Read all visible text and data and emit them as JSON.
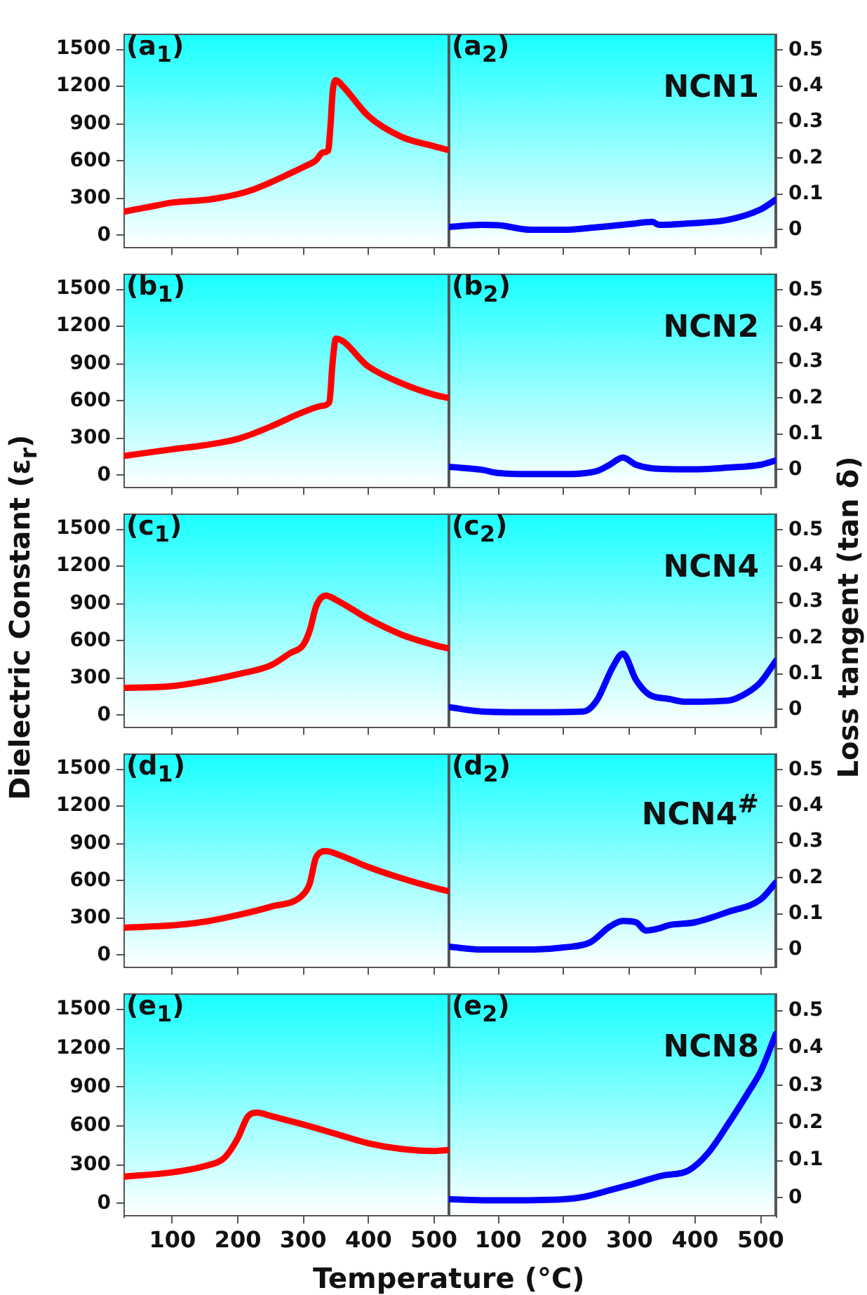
{
  "chart_data": [
    {
      "type": "line",
      "annotations": [
        "(a$_{1}$)"
      ],
      "xlim": [
        25,
        523
      ],
      "xticks": [
        100,
        200,
        300,
        400,
        500
      ],
      "ylim": [
        -100,
        1620
      ],
      "yticks": [
        0,
        300,
        600,
        900,
        1200,
        1500
      ],
      "tick_labels": "y",
      "marker": "none",
      "x": [
        25,
        50,
        75,
        100,
        125,
        150,
        175,
        200,
        225,
        250,
        275,
        300,
        320,
        330,
        338,
        342,
        345,
        350,
        360,
        400,
        450,
        500,
        520
      ],
      "series": [
        {
          "color": "#ff0000",
          "values": [
            190,
            215,
            240,
            265,
            275,
            285,
            305,
            332,
            372,
            426,
            487,
            550,
            607,
            668,
            680,
            900,
            1150,
            1250,
            1205,
            960,
            795,
            718,
            690
          ]
        }
      ]
    },
    {
      "type": "line",
      "annotations": [
        "(a$_{2}$)",
        "NCN1"
      ],
      "xlim": [
        25,
        523
      ],
      "xticks": [
        100,
        200,
        300,
        400,
        500
      ],
      "y2lim": [
        -0.05,
        0.545
      ],
      "y2ticks": [
        0,
        0.1,
        0.2,
        0.3,
        0.4,
        0.5
      ],
      "tick_labels": "y",
      "marker": "none",
      "x": [
        25,
        75,
        100,
        150,
        200,
        250,
        300,
        335,
        345,
        400,
        450,
        500,
        523
      ],
      "series": [
        {
          "color": "#0000ff",
          "axis": "y2",
          "values": [
            0.008,
            0.014,
            0.013,
            0,
            0,
            0.007,
            0.016,
            0.022,
            0.014,
            0.019,
            0.028,
            0.057,
            0.084
          ]
        }
      ]
    },
    {
      "type": "line",
      "annotations": [
        "(b$_{1}$)"
      ],
      "xlim": [
        25,
        523
      ],
      "xticks": [
        100,
        200,
        300,
        400,
        500
      ],
      "ylim": [
        -100,
        1620
      ],
      "yticks": [
        0,
        300,
        600,
        900,
        1200,
        1500
      ],
      "tick_labels": "y",
      "marker": "none",
      "x": [
        25,
        100,
        150,
        200,
        250,
        300,
        330,
        340,
        345,
        350,
        400,
        450,
        500,
        520
      ],
      "series": [
        {
          "color": "#ff0000",
          "values": [
            155,
            210,
            243,
            293,
            392,
            509,
            560,
            590,
            910,
            1100,
            875,
            742,
            649,
            625
          ]
        }
      ]
    },
    {
      "type": "line",
      "annotations": [
        "(b$_{2}$)",
        "NCN2"
      ],
      "xlim": [
        25,
        523
      ],
      "xticks": [
        100,
        200,
        300,
        400,
        500
      ],
      "y2lim": [
        -0.05,
        0.545
      ],
      "y2ticks": [
        0,
        0.1,
        0.2,
        0.3,
        0.4,
        0.5
      ],
      "tick_labels": "y",
      "marker": "none",
      "x": [
        25,
        75,
        100,
        150,
        200,
        250,
        270,
        290,
        310,
        350,
        400,
        450,
        500,
        523
      ],
      "series": [
        {
          "color": "#0000ff",
          "axis": "y2",
          "values": [
            0.008,
            0,
            -0.009,
            -0.012,
            -0.012,
            -0.004,
            0.014,
            0.034,
            0.014,
            0.002,
            0.001,
            0.006,
            0.014,
            0.026
          ]
        }
      ]
    },
    {
      "type": "line",
      "ylabel": "Dielectric Constant (ε$_{r}$)",
      "annotations": [
        "(c$_{1}$)"
      ],
      "xlim": [
        25,
        523
      ],
      "xticks": [
        100,
        200,
        300,
        400,
        500
      ],
      "ylim": [
        -100,
        1620
      ],
      "yticks": [
        0,
        300,
        600,
        900,
        1200,
        1500
      ],
      "tick_labels": "y",
      "marker": "none",
      "x": [
        25,
        100,
        150,
        200,
        250,
        280,
        300,
        310,
        320,
        335,
        350,
        400,
        450,
        500,
        520
      ],
      "series": [
        {
          "color": "#ff0000",
          "values": [
            220,
            235,
            275,
            330,
            400,
            500,
            566,
            682,
            880,
            963,
            930,
            775,
            650,
            566,
            540
          ]
        }
      ]
    },
    {
      "type": "line",
      "y2label": "Loss tangent (tan δ)",
      "annotations": [
        "(c$_{2}$)",
        "NCN4"
      ],
      "xlim": [
        25,
        523
      ],
      "xticks": [
        100,
        200,
        300,
        400,
        500
      ],
      "y2lim": [
        -0.05,
        0.545
      ],
      "y2ticks": [
        0,
        0.1,
        0.2,
        0.3,
        0.4,
        0.5
      ],
      "tick_labels": "y",
      "marker": "none",
      "x": [
        25,
        75,
        150,
        230,
        250,
        275,
        290,
        310,
        330,
        360,
        385,
        450,
        480,
        500,
        523
      ],
      "series": [
        {
          "color": "#0000ff",
          "axis": "y2",
          "values": [
            0.007,
            -0.005,
            -0.007,
            -0.005,
            0.025,
            0.12,
            0.156,
            0.083,
            0.042,
            0.03,
            0.022,
            0.025,
            0.048,
            0.077,
            0.136
          ]
        }
      ]
    },
    {
      "type": "line",
      "annotations": [
        "(d$_{1}$)"
      ],
      "xlim": [
        25,
        523
      ],
      "xticks": [
        100,
        200,
        300,
        400,
        500
      ],
      "ylim": [
        -100,
        1620
      ],
      "yticks": [
        0,
        300,
        600,
        900,
        1200,
        1500
      ],
      "tick_labels": "y",
      "marker": "none",
      "x": [
        25,
        100,
        150,
        200,
        250,
        300,
        310,
        320,
        335,
        350,
        400,
        450,
        500,
        520
      ],
      "series": [
        {
          "color": "#ff0000",
          "values": [
            221,
            240,
            270,
            323,
            389,
            488,
            577,
            791,
            837,
            817,
            709,
            620,
            544,
            518
          ]
        }
      ]
    },
    {
      "type": "line",
      "annotations": [
        "(d$_{2}$)",
        "NCN4$^{#}$"
      ],
      "xlim": [
        25,
        523
      ],
      "xticks": [
        100,
        200,
        300,
        400,
        500
      ],
      "y2lim": [
        -0.05,
        0.545
      ],
      "y2ticks": [
        0,
        0.1,
        0.2,
        0.3,
        0.4,
        0.5
      ],
      "tick_labels": "y",
      "marker": "none",
      "x": [
        25,
        75,
        150,
        200,
        240,
        270,
        290,
        310,
        325,
        345,
        360,
        400,
        450,
        500,
        523
      ],
      "series": [
        {
          "color": "#0000ff",
          "axis": "y2",
          "values": [
            0.008,
            0,
            0,
            0.006,
            0.02,
            0.064,
            0.08,
            0.076,
            0.053,
            0.059,
            0.068,
            0.076,
            0.105,
            0.14,
            0.187
          ]
        }
      ]
    },
    {
      "type": "line",
      "xlabel": "Temperature (°C)",
      "annotations": [
        "(e$_{1}$)"
      ],
      "xlim": [
        25,
        523
      ],
      "xticks": [
        100,
        200,
        300,
        400,
        500
      ],
      "ylim": [
        -100,
        1620
      ],
      "yticks": [
        0,
        300,
        600,
        900,
        1200,
        1500
      ],
      "marker": "none",
      "x": [
        25,
        100,
        150,
        180,
        200,
        215,
        230,
        250,
        300,
        350,
        400,
        450,
        500,
        520
      ],
      "series": [
        {
          "color": "#ff0000",
          "values": [
            208,
            241,
            290,
            356,
            505,
            670,
            703,
            677,
            611,
            538,
            465,
            422,
            406,
            413
          ]
        }
      ]
    },
    {
      "type": "line",
      "annotations": [
        "(e$_{2}$)",
        "NCN8"
      ],
      "xlim": [
        25,
        523
      ],
      "xticks": [
        100,
        200,
        300,
        400,
        500
      ],
      "y2lim": [
        -0.05,
        0.545
      ],
      "y2ticks": [
        0,
        0.1,
        0.2,
        0.3,
        0.4,
        0.5
      ],
      "marker": "none",
      "x": [
        25,
        100,
        200,
        230,
        270,
        300,
        350,
        390,
        420,
        450,
        480,
        500,
        523
      ],
      "series": [
        {
          "color": "#0000ff",
          "axis": "y2",
          "values": [
            -0.004,
            -0.007,
            -0.004,
            0.002,
            0.02,
            0.034,
            0.059,
            0.073,
            0.12,
            0.196,
            0.279,
            0.338,
            0.438
          ]
        }
      ]
    }
  ]
}
